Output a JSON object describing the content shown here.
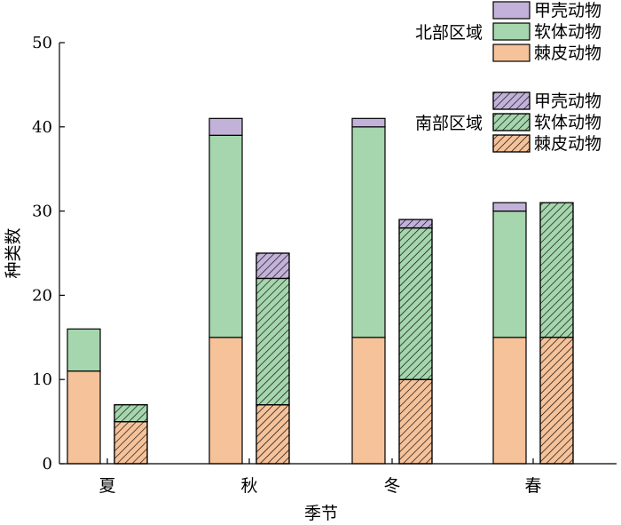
{
  "chart_data": {
    "type": "bar",
    "stacked": true,
    "grouped": true,
    "categories": [
      "夏",
      "秋",
      "冬",
      "春"
    ],
    "xlabel": "季节",
    "ylabel": "种类数",
    "ylim": [
      0,
      50
    ],
    "yticks": [
      0,
      10,
      20,
      30,
      40,
      50
    ],
    "grid": false,
    "legend_position": "top-right",
    "groups": [
      {
        "name": "北部区域",
        "hatched": false,
        "series": [
          {
            "name": "棘皮动物",
            "color": "#f5c29a",
            "values": [
              11,
              15,
              15,
              15
            ]
          },
          {
            "name": "软体动物",
            "color": "#a5d6ad",
            "values": [
              5,
              24,
              25,
              15
            ]
          },
          {
            "name": "甲壳动物",
            "color": "#c2b2d9",
            "values": [
              0,
              2,
              1,
              1
            ]
          }
        ]
      },
      {
        "name": "南部区域",
        "hatched": true,
        "series": [
          {
            "name": "棘皮动物",
            "color": "#f5c29a",
            "values": [
              5,
              7,
              10,
              15
            ]
          },
          {
            "name": "软体动物",
            "color": "#a5d6ad",
            "values": [
              2,
              15,
              18,
              16
            ]
          },
          {
            "name": "甲壳动物",
            "color": "#c2b2d9",
            "values": [
              0,
              3,
              1,
              0
            ]
          }
        ]
      }
    ]
  }
}
